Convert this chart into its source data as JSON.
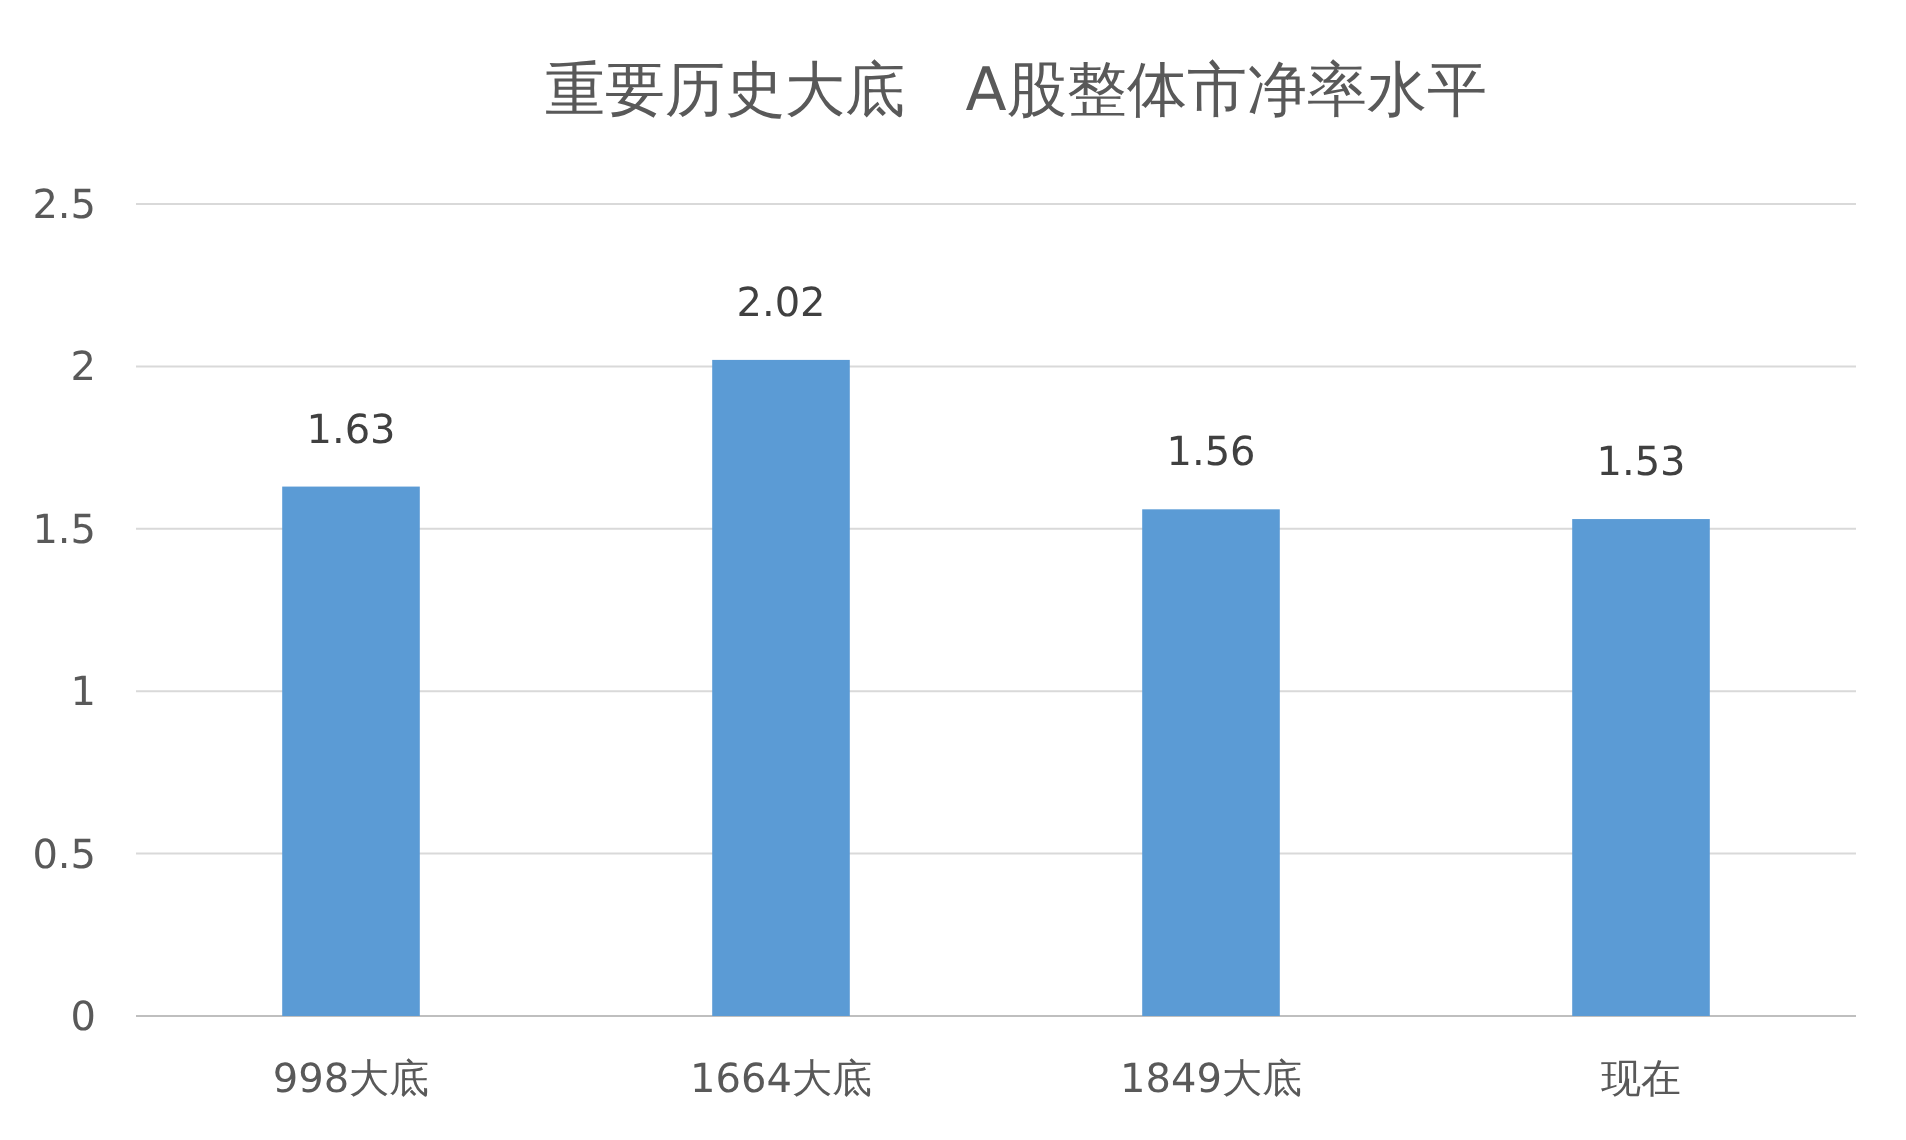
{
  "chart_data": {
    "type": "bar",
    "title": "重要历史大底　A股整体市净率水平",
    "categories": [
      "998大底",
      "1664大底",
      "1849大底",
      "现在"
    ],
    "values": [
      1.63,
      2.02,
      1.56,
      1.53
    ],
    "color": "#5b9bd5",
    "ylim": [
      0,
      2.5
    ],
    "yticks": [
      0,
      0.5,
      1,
      1.5,
      2,
      2.5
    ],
    "grid": "y",
    "data_labels": true
  }
}
